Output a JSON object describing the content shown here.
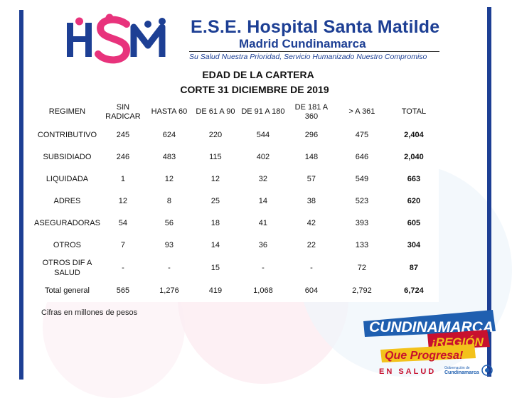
{
  "header": {
    "logo_text": "HSM",
    "org_name": "E.S.E. Hospital Santa Matilde",
    "org_location": "Madrid Cundinamarca",
    "slogan": "Su Salud Nuestra Prioridad, Servicio Humanizado Nuestro Compromiso"
  },
  "report": {
    "title": "EDAD DE LA CARTERA",
    "subtitle": "CORTE 31 DICIEMBRE DE 2019"
  },
  "table": {
    "headers": [
      "REGIMEN",
      "SIN RADICAR",
      "HASTA 60",
      "DE 61 A 90",
      "DE 91 A 180",
      "DE 181 A 360",
      "> A 361",
      "TOTAL"
    ],
    "rows": [
      [
        "CONTRIBUTIVO",
        "245",
        "624",
        "220",
        "544",
        "296",
        "475",
        "2,404"
      ],
      [
        "SUBSIDIADO",
        "246",
        "483",
        "115",
        "402",
        "148",
        "646",
        "2,040"
      ],
      [
        "LIQUIDADA",
        "1",
        "12",
        "12",
        "32",
        "57",
        "549",
        "663"
      ],
      [
        "ADRES",
        "12",
        "8",
        "25",
        "14",
        "38",
        "523",
        "620"
      ],
      [
        "ASEGURADORAS",
        "54",
        "56",
        "18",
        "41",
        "42",
        "393",
        "605"
      ],
      [
        "OTROS",
        "7",
        "93",
        "14",
        "36",
        "22",
        "133",
        "304"
      ],
      [
        "OTROS DIF A SALUD",
        "-",
        "-",
        "15",
        "-",
        "-",
        "72",
        "87"
      ],
      [
        "Total general",
        "565",
        "1,276",
        "419",
        "1,068",
        "604",
        "2,792",
        "6,724"
      ]
    ]
  },
  "footnote": "Cifras en millones de pesos",
  "badge": {
    "line1": "CUNDINAMARCA",
    "line2": "¡REGIÓN",
    "line3": "Que Progresa!",
    "line4": "EN SALUD",
    "small1": "Gobernación de",
    "small2": "Cundinamarca"
  },
  "colors": {
    "brand_blue": "#1d3f94",
    "brand_pink": "#e8337c",
    "badge_blue": "#1f5fb0",
    "badge_red": "#c8102e",
    "badge_yellow": "#f3c21b"
  }
}
